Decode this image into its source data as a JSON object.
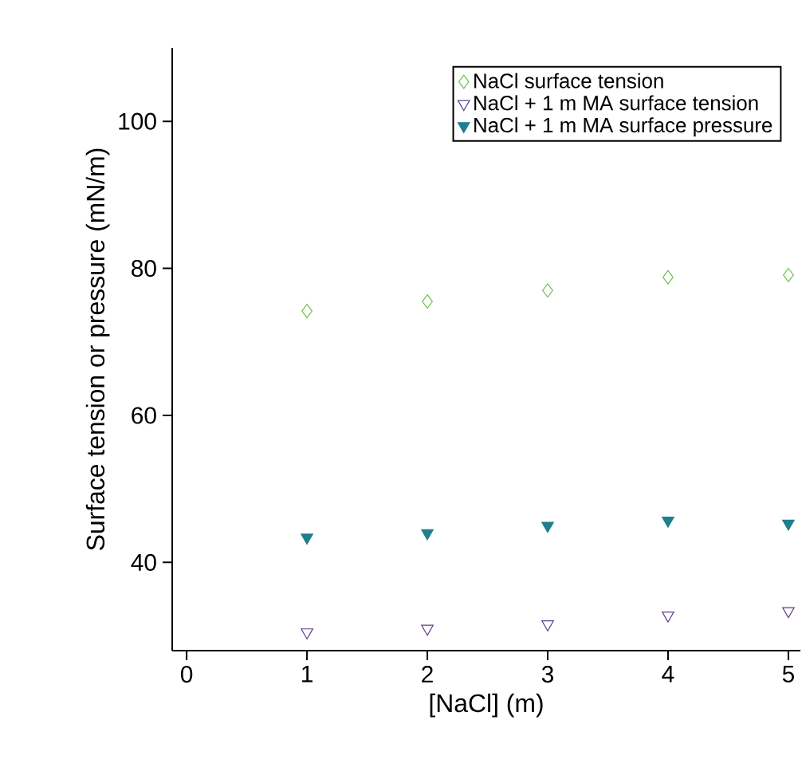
{
  "chart_data": {
    "type": "scatter",
    "xlabel": "[NaCl] (m)",
    "ylabel": "Surface tension or pressure (mN/m)",
    "x": [
      1,
      2,
      3,
      4,
      5
    ],
    "series": [
      {
        "name": "NaCl surface tension",
        "color": "#6cc24a",
        "marker": "diamond",
        "values": [
          74.2,
          75.5,
          77.0,
          78.8,
          79.1
        ]
      },
      {
        "name": "NaCl + 1 m MA surface tension",
        "color": "#5b3f8c",
        "marker": "triangle",
        "values": [
          30.5,
          31.0,
          31.6,
          32.8,
          33.4
        ]
      },
      {
        "name": "NaCl + 1 m MA surface pressure",
        "color": "#1f7f8c",
        "marker": "triangle filled",
        "values": [
          43.4,
          44.0,
          45.0,
          45.7,
          45.3
        ]
      }
    ],
    "xlim": [
      -0.12,
      5.1
    ],
    "ylim": [
      28,
      110
    ],
    "xticks": [
      0,
      1,
      2,
      3,
      4,
      5
    ],
    "yticks": [
      40,
      60,
      80,
      100
    ],
    "legend": "top right",
    "grid": false
  }
}
